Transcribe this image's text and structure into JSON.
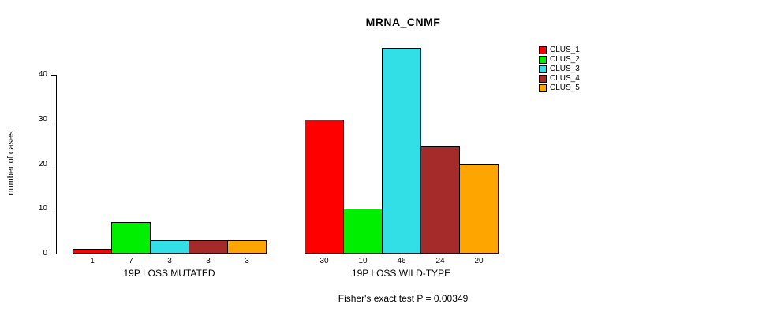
{
  "chart_data": {
    "type": "bar",
    "title": "MRNA_CNMF",
    "ylabel": "number of cases",
    "annotation": "Fisher's exact test P = 0.00349",
    "categories": [
      "19P LOSS MUTATED",
      "19P LOSS WILD-TYPE"
    ],
    "series": [
      {
        "name": "CLUS_1",
        "color": "#FF0000",
        "values": [
          1,
          30
        ]
      },
      {
        "name": "CLUS_2",
        "color": "#00EE00",
        "values": [
          7,
          10
        ]
      },
      {
        "name": "CLUS_3",
        "color": "#33DFE6",
        "values": [
          3,
          46
        ]
      },
      {
        "name": "CLUS_4",
        "color": "#A52A2A",
        "values": [
          3,
          24
        ]
      },
      {
        "name": "CLUS_5",
        "color": "#FFA500",
        "values": [
          3,
          20
        ]
      }
    ],
    "yticks": [
      0,
      10,
      20,
      30,
      40
    ],
    "ylim": [
      0,
      46
    ],
    "grid": false,
    "legend_position": "top-right",
    "bar_value_labels_shown": true
  }
}
